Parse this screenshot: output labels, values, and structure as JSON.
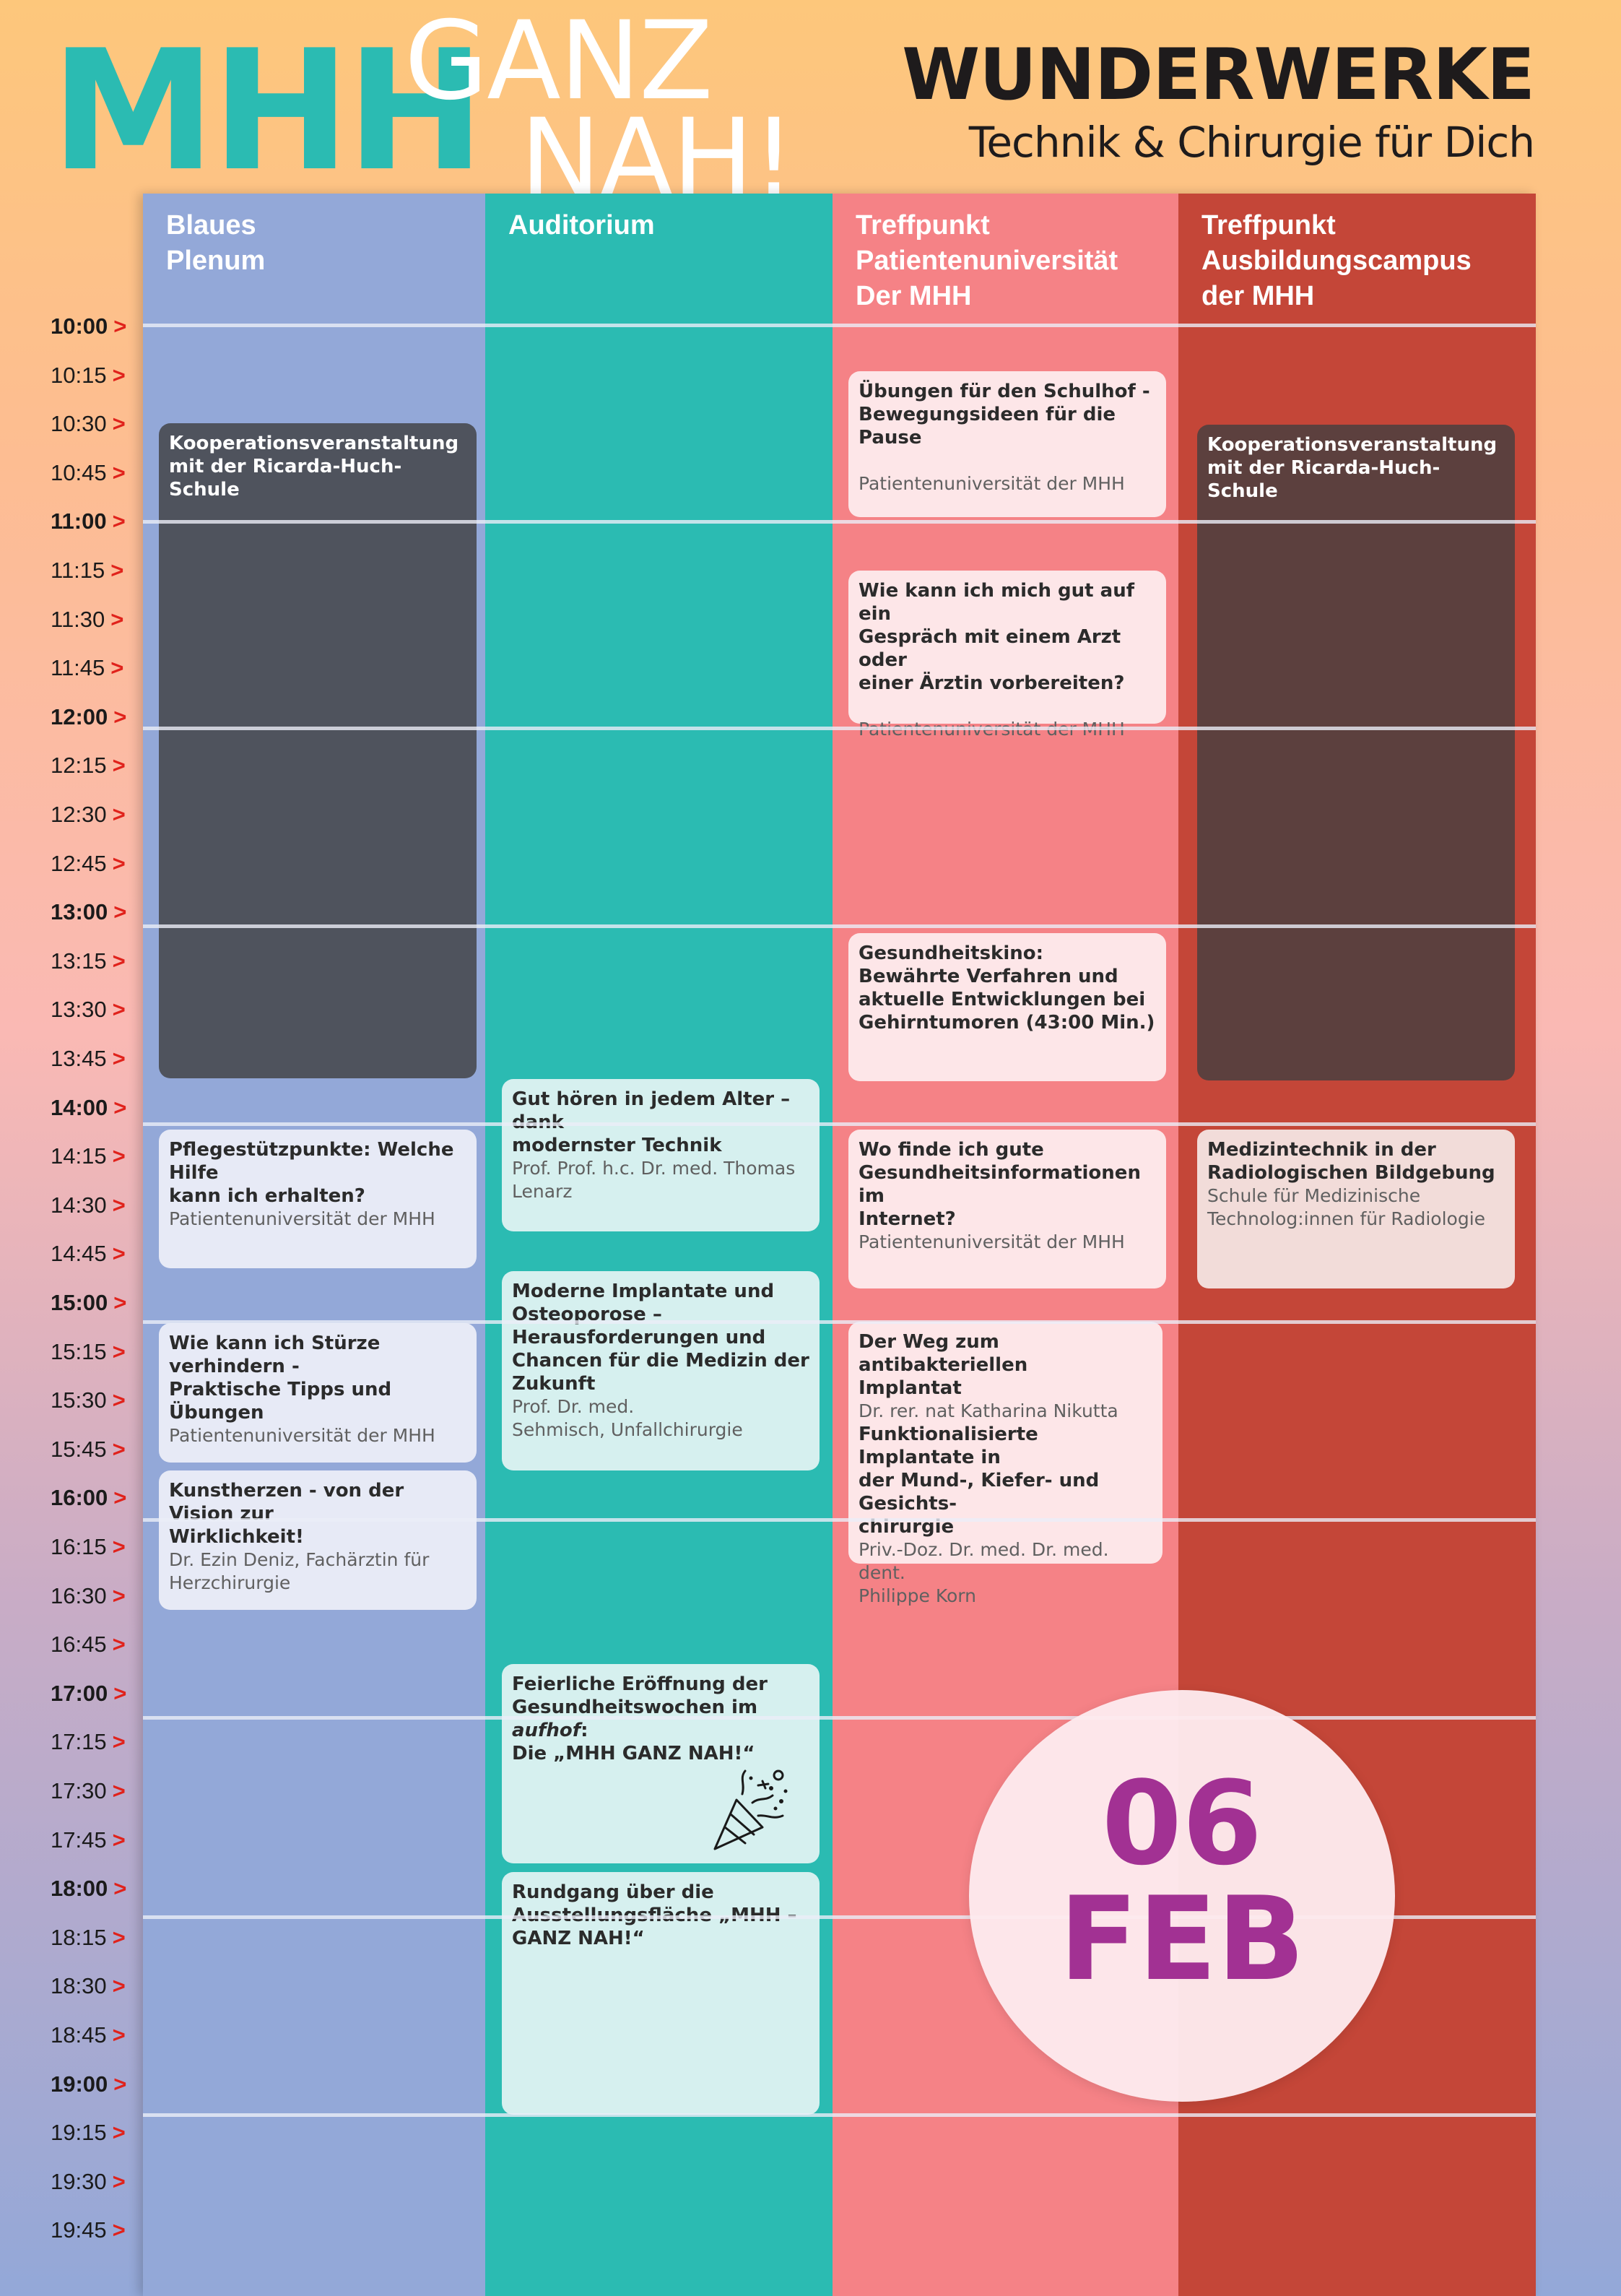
{
  "header": {
    "logo_mhh": "MHH",
    "logo_ganz": "GANZ",
    "logo_nah": "NAH!",
    "title": "WUNDERWERKE",
    "subtitle": "Technik & Chirurgie für Dich"
  },
  "columns": [
    {
      "name": "Blaues\nPlenum",
      "color": "#93a8d8"
    },
    {
      "name": "Auditorium",
      "color": "#2bbbb2"
    },
    {
      "name": "Treffpunkt\nPatientenuniversität\nDer MHH",
      "color": "#f58286"
    },
    {
      "name": "Treffpunkt\nAusbildungscampus\nder MHH",
      "color": "#c44638"
    }
  ],
  "times": [
    "10:00",
    "10:15",
    "10:30",
    "10:45",
    "11:00",
    "11:15",
    "11:30",
    "11:45",
    "12:00",
    "12:15",
    "12:30",
    "12:45",
    "13:00",
    "13:15",
    "13:30",
    "13:45",
    "14:00",
    "14:15",
    "14:30",
    "14:45",
    "15:00",
    "15:15",
    "15:30",
    "15:45",
    "16:00",
    "16:15",
    "16:30",
    "16:45",
    "17:00",
    "17:15",
    "17:30",
    "17:45",
    "18:00",
    "18:15",
    "18:30",
    "18:45",
    "19:00",
    "19:15",
    "19:30",
    "19:45"
  ],
  "time_arrow": ">",
  "events": {
    "plenum": [
      {
        "title": "Kooperationsveranstaltung\nmit der Ricarda-Huch-Schule"
      },
      {
        "title": "Pflegestützpunkte: Welche Hilfe\nkann ich erhalten?",
        "sub": "Patientenuniversität der MHH"
      },
      {
        "title": "Wie kann ich Stürze verhindern -\nPraktische Tipps und Übungen",
        "sub": "Patientenuniversität der MHH"
      },
      {
        "title": "Kunstherzen - von der Vision zur\nWirklichkeit!",
        "sub": "Dr. Ezin Deniz, Fachärztin für\nHerzchirurgie"
      }
    ],
    "auditorium": [
      {
        "title": "Gut hören in jedem Alter – dank\nmodernster Technik",
        "sub": "Prof. Prof. h.c. Dr. med. Thomas\nLenarz"
      },
      {
        "title": "Moderne Implantate und\nOsteoporose –\nHerausforderungen und\nChancen für die Medizin der\nZukunft",
        "sub": "Prof. Dr. med.\nSehmisch, Unfallchirurgie"
      },
      {
        "title_a": "Feierliche Eröffnung der\nGesundheitswochen im ",
        "title_em": "aufhof",
        "title_b": ":\nDie „MHH GANZ NAH!“"
      },
      {
        "title": "Rundgang über die\nAusstellungsfläche „MHH –\nGANZ NAH!“"
      }
    ],
    "patientenuni": [
      {
        "title": "Übungen für den Schulhof -\nBewegungsideen für die Pause",
        "sub": "Patientenuniversität der MHH"
      },
      {
        "title": "Wie kann ich mich gut auf ein\nGespräch mit einem Arzt oder\neiner Ärztin vorbereiten?",
        "sub": "Patientenuniversität der MHH"
      },
      {
        "title": "Gesundheitskino:\nBewährte Verfahren und\naktuelle Entwicklungen bei\nGehirntumoren (43:00 Min.)"
      },
      {
        "title": "Wo finde ich gute\nGesundheitsinformationen im\nInternet?",
        "sub": "Patientenuniversität der MHH"
      },
      {
        "title": "Der Weg zum antibakteriellen\nImplantat",
        "sub": "Dr. rer. nat Katharina Nikutta",
        "title2": "Funktionalisierte Implantate in\nder Mund-, Kiefer- und Gesichts-\nchirurgie",
        "sub2": "Priv.-Doz. Dr. med. Dr. med. dent.\nPhilippe Korn"
      }
    ],
    "ausbildung": [
      {
        "title": "Kooperationsveranstaltung\nmit der Ricarda-Huch-Schule"
      },
      {
        "title": "Medizintechnik in der\nRadiologischen Bildgebung",
        "sub": "Schule für Medizinische\nTechnolog:innen für Radiologie"
      }
    ]
  },
  "date": {
    "day": "06",
    "month": "FEB"
  }
}
